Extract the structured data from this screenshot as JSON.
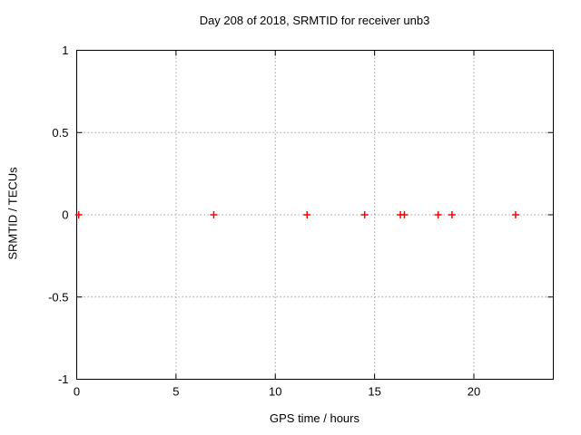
{
  "chart_data": {
    "type": "scatter",
    "title": "Day 208 of 2018, SRMTID for receiver unb3",
    "xlabel": "GPS time / hours",
    "ylabel": "SRMTID / TECUs",
    "xlim": [
      0,
      24
    ],
    "ylim": [
      -1,
      1
    ],
    "xticks": [
      0,
      5,
      10,
      15,
      20
    ],
    "yticks": [
      -1,
      -0.5,
      0,
      0.5,
      1
    ],
    "grid": true,
    "legend": "none",
    "marker": "plus",
    "points": [
      {
        "x": 0.1,
        "y": 0
      },
      {
        "x": 6.9,
        "y": 0
      },
      {
        "x": 11.6,
        "y": 0
      },
      {
        "x": 14.5,
        "y": 0
      },
      {
        "x": 16.3,
        "y": 0
      },
      {
        "x": 16.5,
        "y": 0
      },
      {
        "x": 18.2,
        "y": 0
      },
      {
        "x": 18.9,
        "y": 0
      },
      {
        "x": 22.1,
        "y": 0
      }
    ]
  },
  "colors": {
    "background": "#ffffff",
    "border": "#000000",
    "grid": "#a0a0a0",
    "marker": "#ff0000",
    "text": "#000000"
  }
}
